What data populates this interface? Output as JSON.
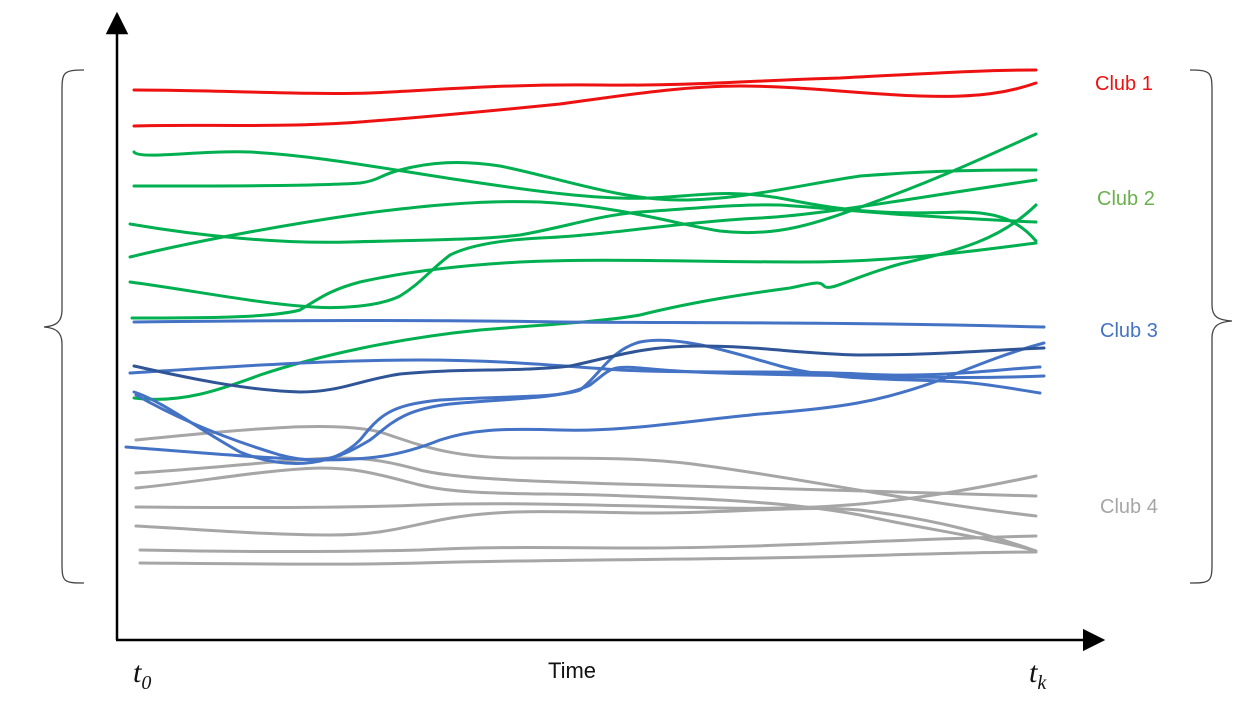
{
  "diagram": {
    "x_axis_label": "Time",
    "x_start_label": "t",
    "x_start_sub": "0",
    "x_end_label": "t",
    "x_end_sub": "k"
  },
  "clubs": [
    {
      "id": "club1",
      "label": "Club 1",
      "color": "#ee1111",
      "line_color": "#ee1111",
      "count": 2
    },
    {
      "id": "club2",
      "label": "Club 2",
      "color": "#6ab04c",
      "line_color": "#00b050",
      "count": 7
    },
    {
      "id": "club3",
      "label": "Club 3",
      "color": "#4472c4",
      "line_color": "#4472c4",
      "count": 6
    },
    {
      "id": "club4",
      "label": "Club 4",
      "color": "#a6a6a6",
      "line_color": "#a6a6a6",
      "count": 8
    }
  ],
  "colors": {
    "axis": "#000000",
    "bracket": "#444444",
    "club3_dark_line": "#2f5597"
  }
}
